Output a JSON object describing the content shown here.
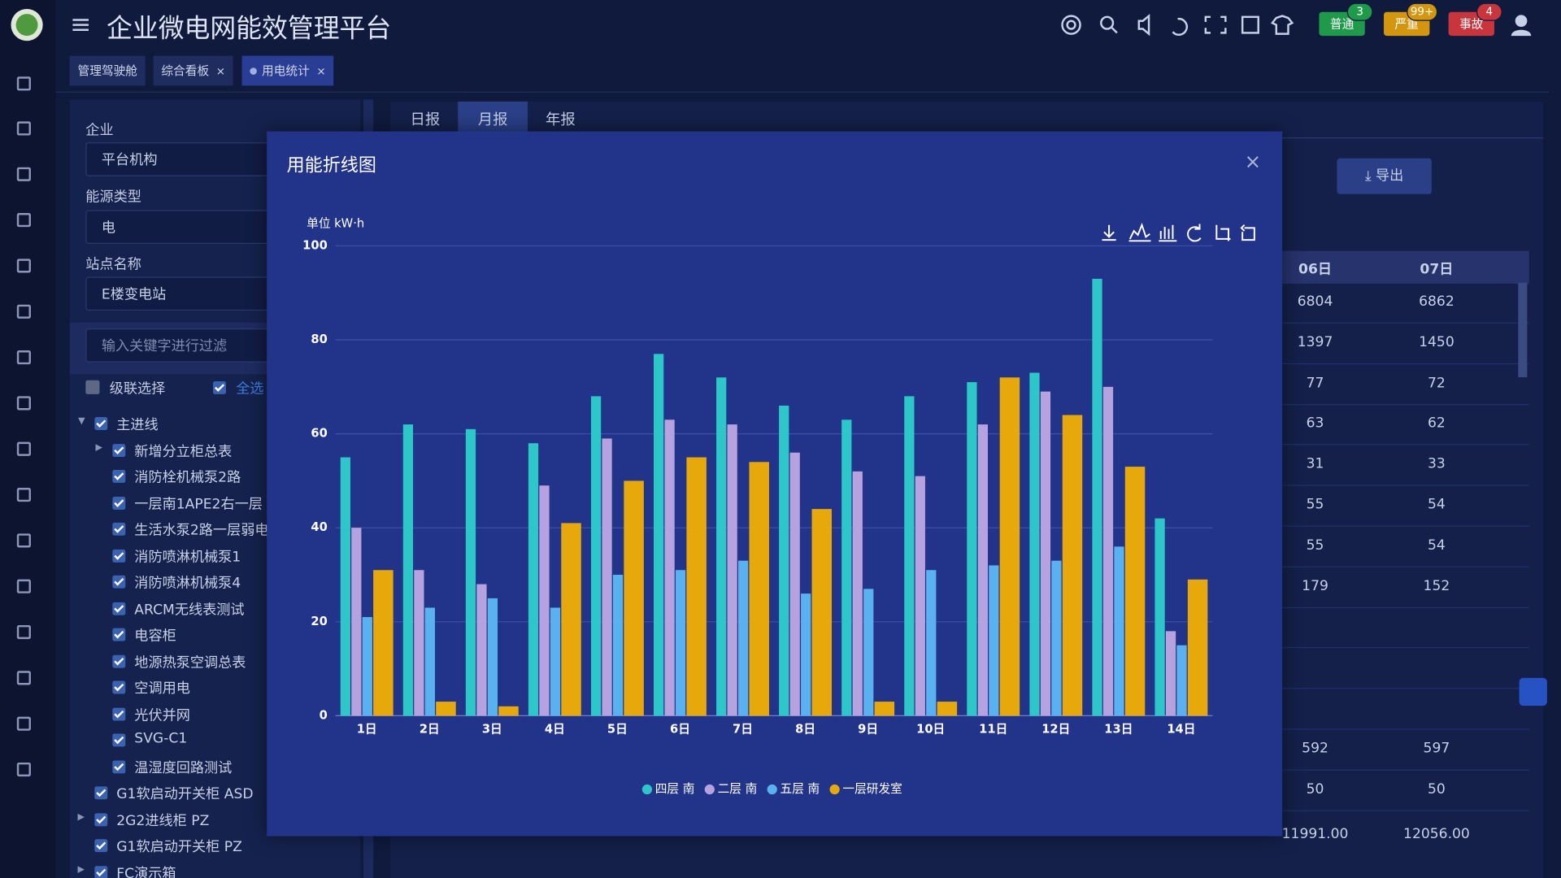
{
  "header": {
    "title": "企业微电网能效管理平台",
    "alerts": [
      {
        "label": "普通",
        "count": 3,
        "color": "#1f9a4a"
      },
      {
        "label": "严重",
        "count": "99+",
        "color": "#d4960f"
      },
      {
        "label": "事故",
        "count": 4,
        "color": "#c8353d"
      }
    ]
  },
  "tabs": {
    "items": [
      "管理驾驶舱",
      "综合看板",
      "用电统计"
    ],
    "close": "×"
  },
  "filters": {
    "enterprise_label": "企业",
    "enterprise": "平台机构",
    "energy_label": "能源类型",
    "energy": "电",
    "station_label": "站点名称",
    "station": "E楼变电站",
    "search_placeholder": "输入关键字进行过滤",
    "cascade": "级联选择",
    "select_all": "全选"
  },
  "tree": [
    {
      "label": "主进线",
      "level": 0,
      "caret": "down"
    },
    {
      "label": "新增分立柜总表",
      "level": 1,
      "caret": "right"
    },
    {
      "label": "消防栓机械泵2路",
      "level": 1
    },
    {
      "label": "一层南1APE2右一层",
      "level": 1
    },
    {
      "label": "生活水泵2路一层弱电",
      "level": 1
    },
    {
      "label": "消防喷淋机械泵1",
      "level": 1
    },
    {
      "label": "消防喷淋机械泵4",
      "level": 1
    },
    {
      "label": "ARCM无线表测试",
      "level": 1
    },
    {
      "label": "电容柜",
      "level": 1
    },
    {
      "label": "地源热泵空调总表",
      "level": 1
    },
    {
      "label": "空调用电",
      "level": 1
    },
    {
      "label": "光伏并网",
      "level": 1
    },
    {
      "label": "SVG-C1",
      "level": 1
    },
    {
      "label": "温湿度回路测试",
      "level": 1
    },
    {
      "label": "G1软启动开关柜 ASD",
      "level": 0
    },
    {
      "label": "2G2进线柜 PZ",
      "level": 0,
      "caret": "right"
    },
    {
      "label": "G1软启动开关柜 PZ",
      "level": 0
    },
    {
      "label": "FC演示箱",
      "level": 0,
      "caret": "right"
    }
  ],
  "report_tabs": [
    "日报",
    "月报",
    "年报"
  ],
  "export_button": "导出",
  "table": {
    "columns": [
      "06日",
      "07日"
    ],
    "rows": [
      [
        6804,
        6862
      ],
      [
        1397,
        1450
      ],
      [
        77,
        72
      ],
      [
        63,
        62
      ],
      [
        31,
        33
      ],
      [
        55,
        54
      ],
      [
        55,
        54
      ],
      [
        179,
        152
      ],
      [
        null,
        null
      ],
      [
        null,
        null
      ],
      [
        null,
        null
      ],
      [
        592,
        597
      ],
      [
        50,
        50
      ]
    ],
    "total": [
      "11991.00",
      "12056.00"
    ]
  },
  "modal": {
    "title": "用能折线图",
    "close": "×"
  },
  "chart_data": {
    "type": "bar",
    "unit_label": "单位 kW·h",
    "categories": [
      "1日",
      "2日",
      "3日",
      "4日",
      "5日",
      "6日",
      "7日",
      "8日",
      "9日",
      "10日",
      "11日",
      "12日",
      "13日",
      "14日"
    ],
    "series": [
      {
        "name": "四层 南",
        "color": "#2ec7c9",
        "values": [
          55,
          62,
          61,
          58,
          68,
          77,
          72,
          66,
          63,
          68,
          71,
          73,
          93,
          42
        ]
      },
      {
        "name": "二层 南",
        "color": "#b6a2de",
        "values": [
          40,
          31,
          28,
          49,
          59,
          63,
          62,
          56,
          52,
          51,
          62,
          69,
          70,
          18
        ]
      },
      {
        "name": "五层 南",
        "color": "#5ab1ef",
        "values": [
          21,
          23,
          25,
          23,
          30,
          31,
          33,
          26,
          27,
          31,
          32,
          33,
          36,
          15
        ]
      },
      {
        "name": "一层研发室",
        "color": "#e6a80b",
        "values": [
          31,
          3,
          2,
          41,
          50,
          55,
          54,
          44,
          3,
          3,
          72,
          64,
          53,
          29
        ]
      }
    ],
    "ylim": [
      0,
      100
    ],
    "yticks": [
      0,
      20,
      40,
      60,
      80,
      100
    ],
    "grid": true,
    "legend": "bottom"
  }
}
